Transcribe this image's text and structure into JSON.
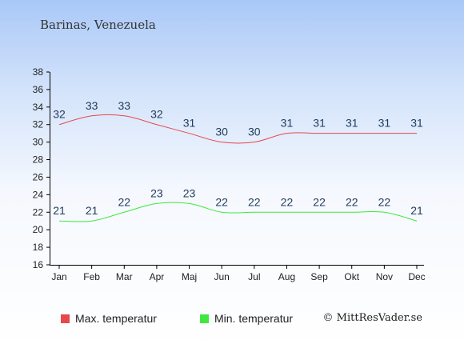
{
  "header": {
    "location": "Barinas, Venezuela"
  },
  "chart_data": {
    "type": "line",
    "categories": [
      "Jan",
      "Feb",
      "Mar",
      "Apr",
      "Maj",
      "Jun",
      "Jul",
      "Aug",
      "Sep",
      "Okt",
      "Nov",
      "Dec"
    ],
    "series": [
      {
        "name": "Max. temperatur",
        "color": "#e8474b",
        "values": [
          32,
          33,
          33,
          32,
          31,
          30,
          30,
          31,
          31,
          31,
          31,
          31
        ]
      },
      {
        "name": "Min. temperatur",
        "color": "#3fe83f",
        "values": [
          21,
          21,
          22,
          23,
          23,
          22,
          22,
          22,
          22,
          22,
          22,
          21
        ]
      }
    ],
    "yticks": [
      16,
      18,
      20,
      22,
      24,
      26,
      28,
      30,
      32,
      34,
      36,
      38
    ],
    "ylim": [
      16,
      38
    ],
    "grid": false,
    "legend_position": "bottom-left",
    "label_color": "#1f3a5a"
  },
  "footer": {
    "copyright": "© MittResVader.se"
  }
}
